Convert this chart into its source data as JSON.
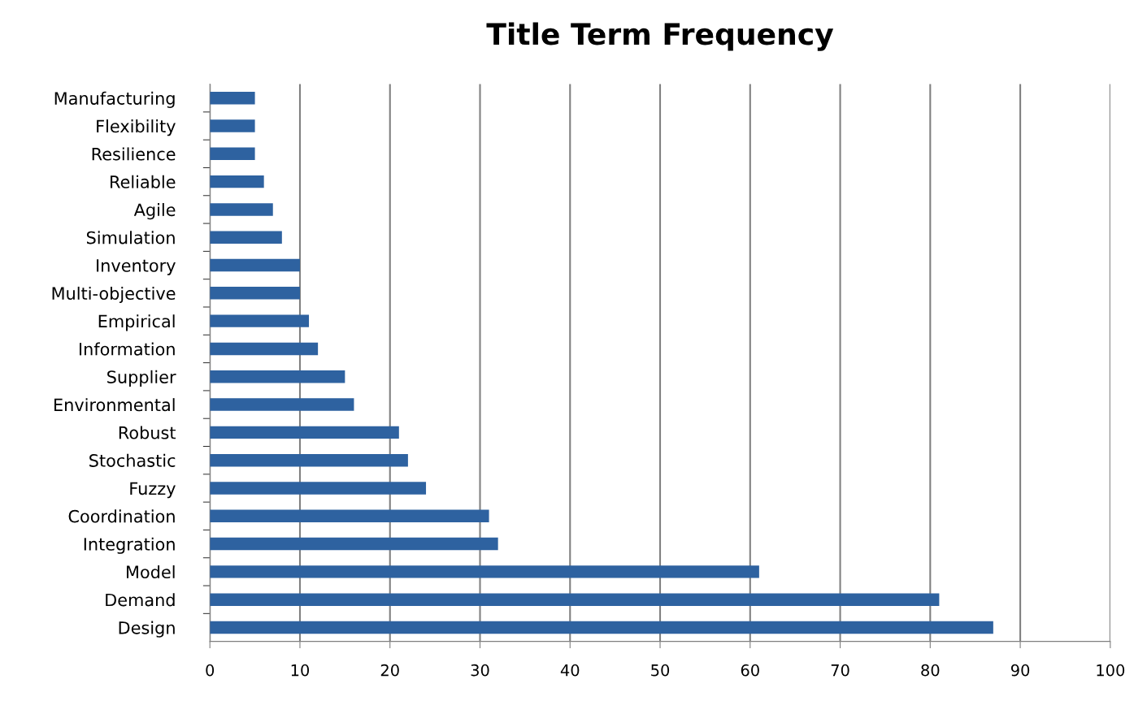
{
  "chart_data": {
    "type": "bar",
    "orientation": "horizontal",
    "title": "Title Term Frequency",
    "categories": [
      "Manufacturing",
      "Flexibility",
      "Resilience",
      "Reliable",
      "Agile",
      "Simulation",
      "Inventory",
      "Multi-objective",
      "Empirical",
      "Information",
      "Supplier",
      "Environmental",
      "Robust",
      "Stochastic",
      "Fuzzy",
      "Coordination",
      "Integration",
      "Model",
      "Demand",
      "Design"
    ],
    "values": [
      5,
      5,
      5,
      6,
      7,
      8,
      10,
      10,
      11,
      12,
      15,
      16,
      21,
      22,
      24,
      31,
      32,
      61,
      81,
      87
    ],
    "color": "#2e62a0",
    "xlim": [
      0,
      100
    ],
    "xticks": [
      0,
      10,
      20,
      30,
      40,
      50,
      60,
      70,
      80,
      90,
      100
    ],
    "grid": "x",
    "legend": false
  }
}
